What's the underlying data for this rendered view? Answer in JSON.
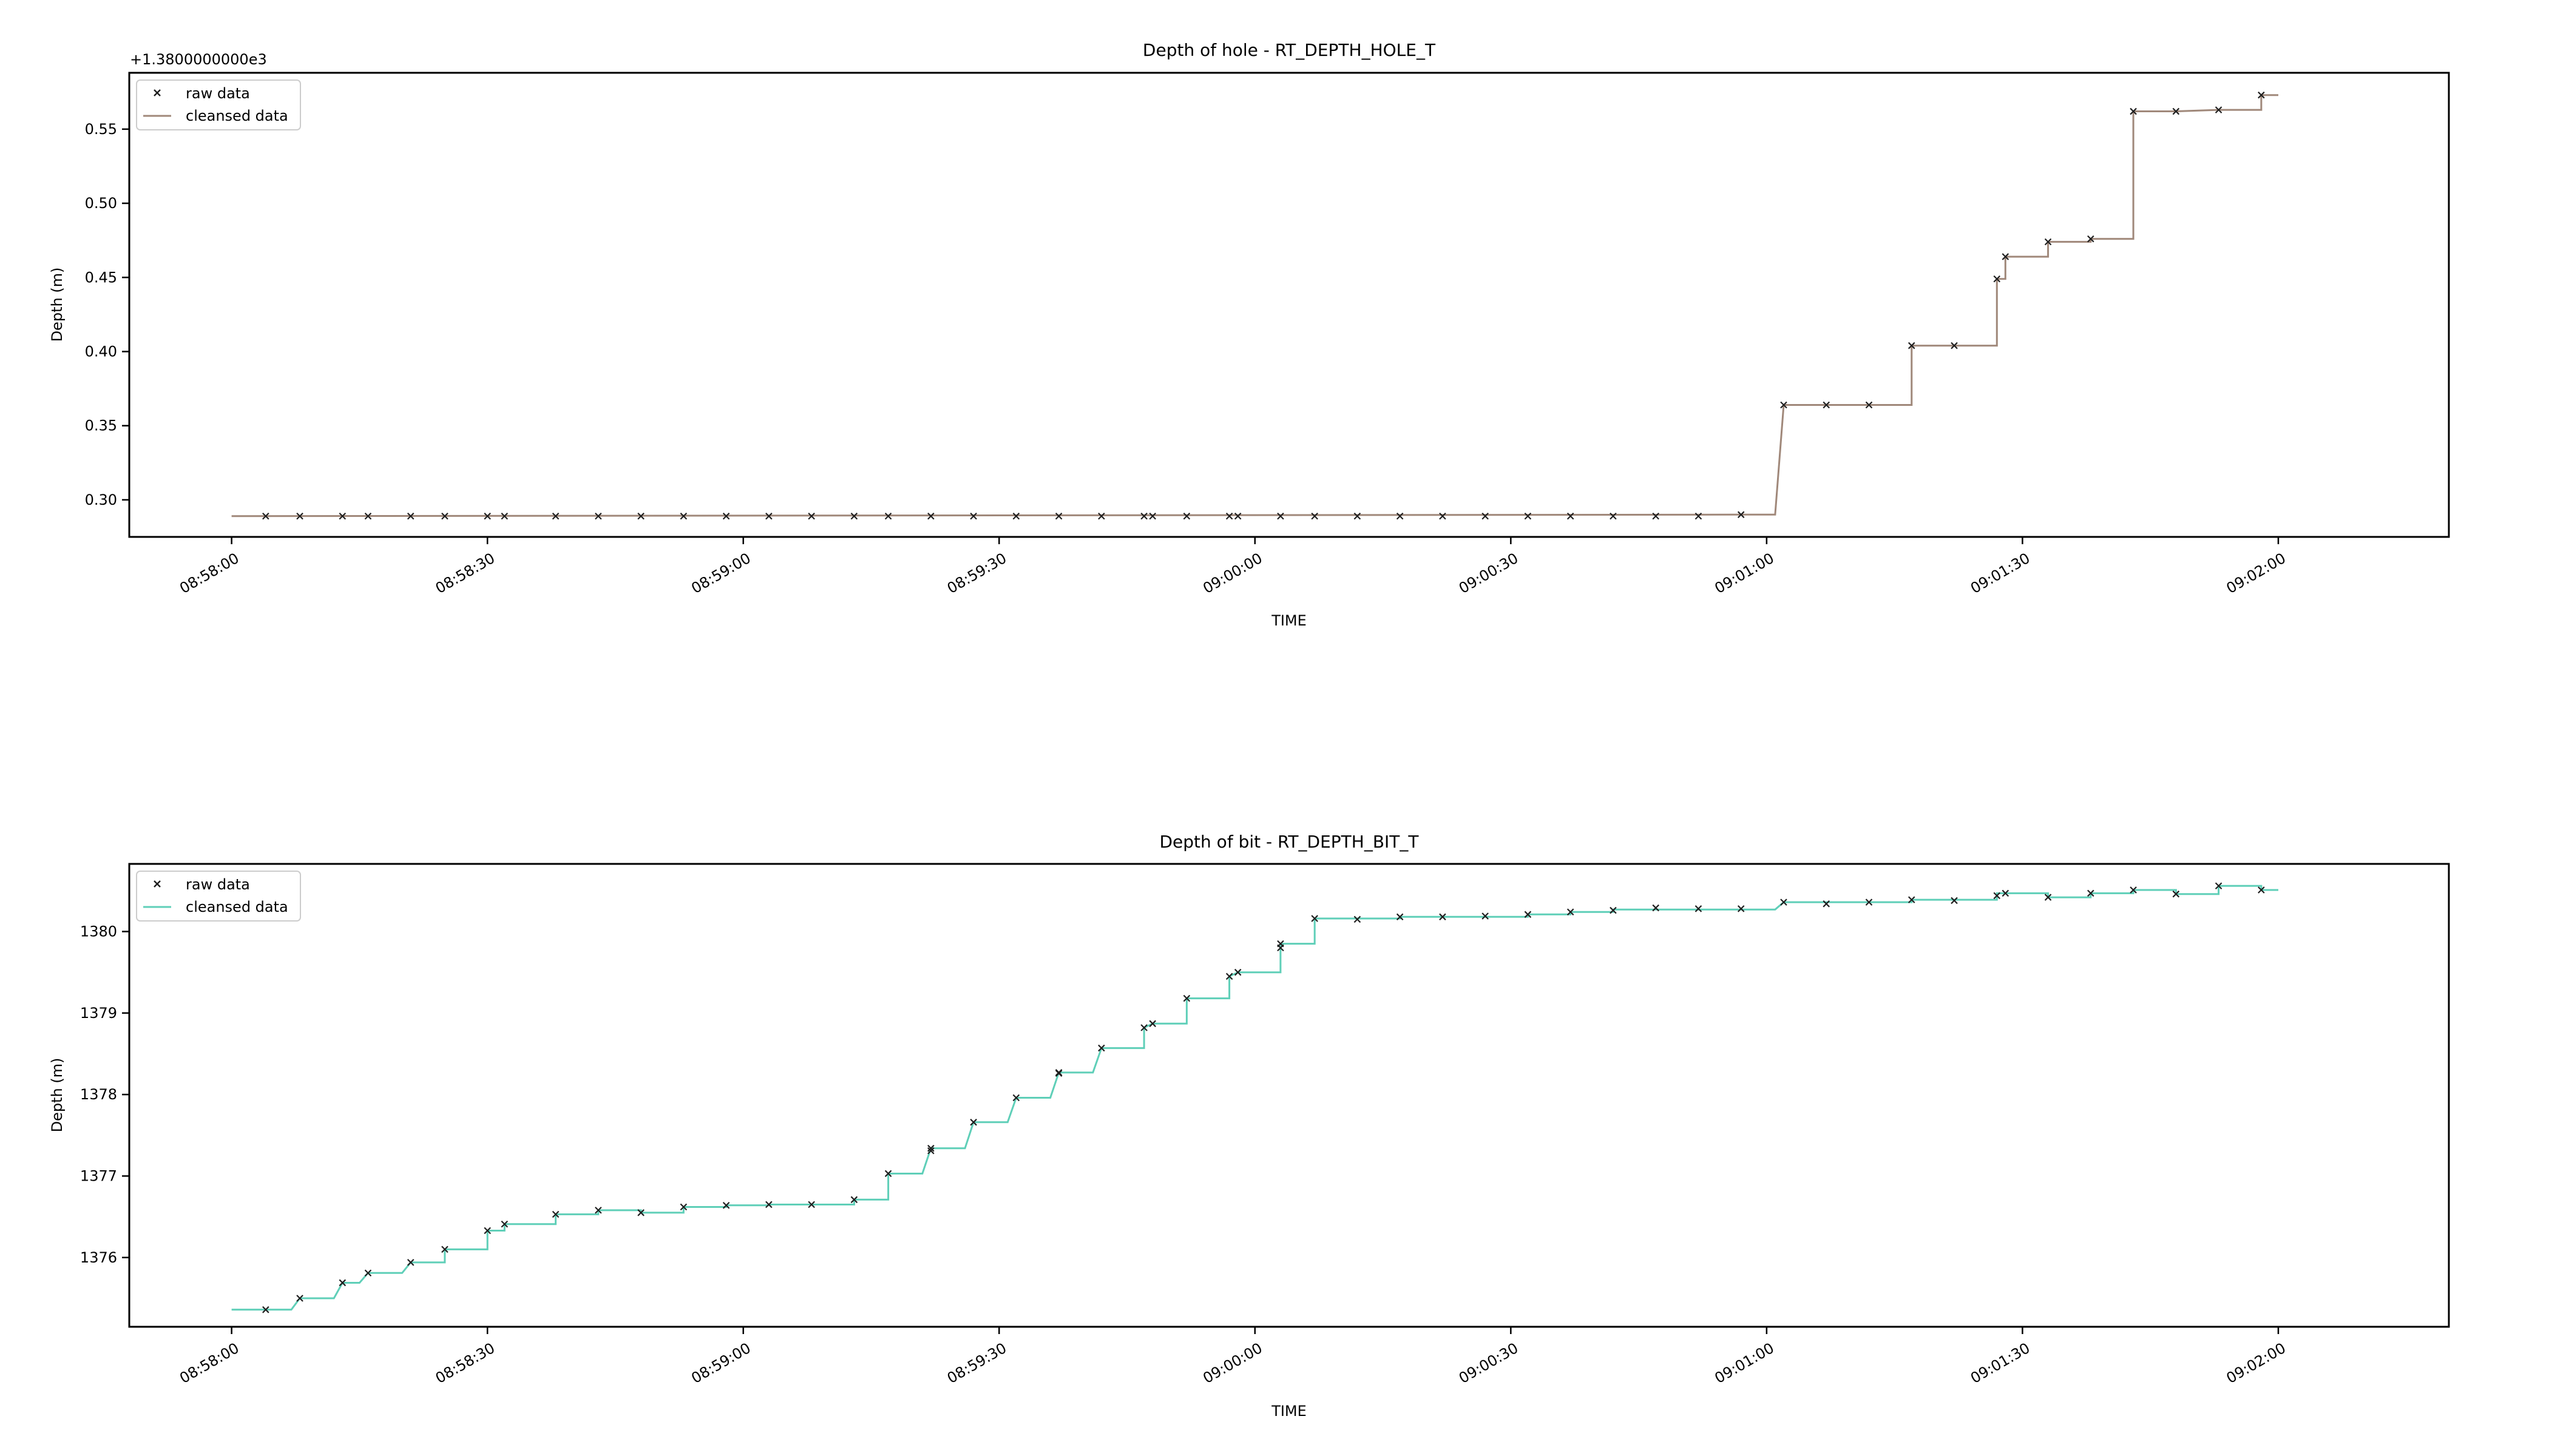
{
  "chart_data": [
    {
      "type": "line",
      "title": "Depth of hole - RT_DEPTH_HOLE_T",
      "xlabel": "TIME",
      "ylabel": "Depth (m)",
      "offset_text": "+1.3800000000e3",
      "xlim": [
        "08:57:48",
        "09:02:20"
      ],
      "ylim": [
        0.275,
        0.588
      ],
      "x_ticks": [
        "08:58:00",
        "08:58:30",
        "08:59:00",
        "08:59:30",
        "09:00:00",
        "09:00:30",
        "09:01:00",
        "09:01:30",
        "09:02:00"
      ],
      "y_ticks": [
        0.3,
        0.35,
        0.4,
        0.45,
        0.5,
        0.55
      ],
      "y_tick_labels": [
        "0.30",
        "0.35",
        "0.40",
        "0.45",
        "0.50",
        "0.55"
      ],
      "grid": false,
      "legend": "upper-left",
      "series": [
        {
          "name": "raw data",
          "style": "markers-x",
          "color": "#1f1f1f",
          "points": [
            [
              "08:58:04",
              0.289
            ],
            [
              "08:58:08",
              0.289
            ],
            [
              "08:58:13",
              0.289
            ],
            [
              "08:58:16",
              0.289
            ],
            [
              "08:58:21",
              0.289
            ],
            [
              "08:58:25",
              0.289
            ],
            [
              "08:58:30",
              0.289
            ],
            [
              "08:58:32",
              0.289
            ],
            [
              "08:58:38",
              0.289
            ],
            [
              "08:58:43",
              0.289
            ],
            [
              "08:58:48",
              0.289
            ],
            [
              "08:58:53",
              0.289
            ],
            [
              "08:58:58",
              0.289
            ],
            [
              "08:59:03",
              0.289
            ],
            [
              "08:59:08",
              0.289
            ],
            [
              "08:59:13",
              0.289
            ],
            [
              "08:59:17",
              0.289
            ],
            [
              "08:59:22",
              0.289
            ],
            [
              "08:59:27",
              0.289
            ],
            [
              "08:59:32",
              0.289
            ],
            [
              "08:59:37",
              0.289
            ],
            [
              "08:59:42",
              0.289
            ],
            [
              "08:59:47",
              0.289
            ],
            [
              "08:59:48",
              0.289
            ],
            [
              "08:59:52",
              0.289
            ],
            [
              "08:59:57",
              0.289
            ],
            [
              "08:59:58",
              0.289
            ],
            [
              "09:00:03",
              0.289
            ],
            [
              "09:00:07",
              0.289
            ],
            [
              "09:00:12",
              0.289
            ],
            [
              "09:00:17",
              0.289
            ],
            [
              "09:00:22",
              0.289
            ],
            [
              "09:00:27",
              0.289
            ],
            [
              "09:00:32",
              0.289
            ],
            [
              "09:00:37",
              0.289
            ],
            [
              "09:00:42",
              0.289
            ],
            [
              "09:00:47",
              0.289
            ],
            [
              "09:00:52",
              0.289
            ],
            [
              "09:00:57",
              0.29
            ],
            [
              "09:01:02",
              0.364
            ],
            [
              "09:01:07",
              0.364
            ],
            [
              "09:01:12",
              0.364
            ],
            [
              "09:01:17",
              0.404
            ],
            [
              "09:01:22",
              0.404
            ],
            [
              "09:01:27",
              0.449
            ],
            [
              "09:01:28",
              0.464
            ],
            [
              "09:01:33",
              0.474
            ],
            [
              "09:01:38",
              0.476
            ],
            [
              "09:01:43",
              0.562
            ],
            [
              "09:01:48",
              0.562
            ],
            [
              "09:01:53",
              0.563
            ],
            [
              "09:01:58",
              0.573
            ]
          ]
        },
        {
          "name": "cleansed data",
          "style": "line",
          "color": "#a0887a",
          "points": [
            [
              "08:58:00",
              0.289
            ],
            [
              "09:00:56",
              0.29
            ],
            [
              "09:01:01",
              0.29
            ],
            [
              "09:01:02",
              0.364
            ],
            [
              "09:01:17",
              0.364
            ],
            [
              "09:01:17",
              0.404
            ],
            [
              "09:01:27",
              0.404
            ],
            [
              "09:01:27",
              0.449
            ],
            [
              "09:01:28",
              0.449
            ],
            [
              "09:01:28",
              0.464
            ],
            [
              "09:01:33",
              0.464
            ],
            [
              "09:01:33",
              0.474
            ],
            [
              "09:01:38",
              0.474
            ],
            [
              "09:01:38",
              0.476
            ],
            [
              "09:01:43",
              0.476
            ],
            [
              "09:01:43",
              0.562
            ],
            [
              "09:01:48",
              0.562
            ],
            [
              "09:01:53",
              0.563
            ],
            [
              "09:01:58",
              0.563
            ],
            [
              "09:01:58",
              0.573
            ],
            [
              "09:02:00",
              0.573
            ]
          ]
        }
      ]
    },
    {
      "type": "line",
      "title": "Depth of bit - RT_DEPTH_BIT_T",
      "xlabel": "TIME",
      "ylabel": "Depth (m)",
      "xlim": [
        "08:57:48",
        "09:02:20"
      ],
      "ylim": [
        1375.15,
        1380.83
      ],
      "x_ticks": [
        "08:58:00",
        "08:58:30",
        "08:59:00",
        "08:59:30",
        "09:00:00",
        "09:00:30",
        "09:01:00",
        "09:01:30",
        "09:02:00"
      ],
      "y_ticks": [
        1376,
        1377,
        1378,
        1379,
        1380
      ],
      "y_tick_labels": [
        "1376",
        "1377",
        "1378",
        "1379",
        "1380"
      ],
      "grid": false,
      "legend": "upper-left",
      "series": [
        {
          "name": "raw data",
          "style": "markers-x",
          "color": "#1f1f1f",
          "points": [
            [
              "08:58:04",
              1375.36
            ],
            [
              "08:58:08",
              1375.5
            ],
            [
              "08:58:13",
              1375.69
            ],
            [
              "08:58:16",
              1375.81
            ],
            [
              "08:58:21",
              1375.94
            ],
            [
              "08:58:25",
              1376.1
            ],
            [
              "08:58:30",
              1376.33
            ],
            [
              "08:58:32",
              1376.41
            ],
            [
              "08:58:38",
              1376.53
            ],
            [
              "08:58:43",
              1376.58
            ],
            [
              "08:58:48",
              1376.55
            ],
            [
              "08:58:53",
              1376.62
            ],
            [
              "08:58:58",
              1376.64
            ],
            [
              "08:59:03",
              1376.65
            ],
            [
              "08:59:08",
              1376.65
            ],
            [
              "08:59:13",
              1376.71
            ],
            [
              "08:59:17",
              1377.03
            ],
            [
              "08:59:22",
              1377.31
            ],
            [
              "08:59:22",
              1377.34
            ],
            [
              "08:59:27",
              1377.66
            ],
            [
              "08:59:32",
              1377.96
            ],
            [
              "08:59:37",
              1378.26
            ],
            [
              "08:59:37",
              1378.27
            ],
            [
              "08:59:42",
              1378.57
            ],
            [
              "08:59:47",
              1378.82
            ],
            [
              "08:59:48",
              1378.87
            ],
            [
              "08:59:52",
              1379.18
            ],
            [
              "08:59:57",
              1379.45
            ],
            [
              "08:59:58",
              1379.5
            ],
            [
              "09:00:03",
              1379.8
            ],
            [
              "09:00:03",
              1379.85
            ],
            [
              "09:00:07",
              1380.16
            ],
            [
              "09:00:12",
              1380.15
            ],
            [
              "09:00:17",
              1380.18
            ],
            [
              "09:00:22",
              1380.18
            ],
            [
              "09:00:27",
              1380.19
            ],
            [
              "09:00:32",
              1380.21
            ],
            [
              "09:00:37",
              1380.24
            ],
            [
              "09:00:42",
              1380.26
            ],
            [
              "09:00:47",
              1380.29
            ],
            [
              "09:00:52",
              1380.28
            ],
            [
              "09:00:57",
              1380.28
            ],
            [
              "09:01:02",
              1380.36
            ],
            [
              "09:01:07",
              1380.34
            ],
            [
              "09:01:12",
              1380.36
            ],
            [
              "09:01:17",
              1380.39
            ],
            [
              "09:01:22",
              1380.38
            ],
            [
              "09:01:27",
              1380.44
            ],
            [
              "09:01:28",
              1380.47
            ],
            [
              "09:01:33",
              1380.42
            ],
            [
              "09:01:38",
              1380.47
            ],
            [
              "09:01:43",
              1380.51
            ],
            [
              "09:01:48",
              1380.46
            ],
            [
              "09:01:53",
              1380.56
            ],
            [
              "09:01:58",
              1380.51
            ]
          ]
        },
        {
          "name": "cleansed data",
          "style": "line",
          "color": "#5fcfb8",
          "points": [
            [
              "08:58:00",
              1375.36
            ],
            [
              "08:58:07",
              1375.36
            ],
            [
              "08:58:08",
              1375.5
            ],
            [
              "08:58:12",
              1375.5
            ],
            [
              "08:58:13",
              1375.69
            ],
            [
              "08:58:15",
              1375.69
            ],
            [
              "08:58:16",
              1375.81
            ],
            [
              "08:58:20",
              1375.81
            ],
            [
              "08:58:21",
              1375.94
            ],
            [
              "08:58:25",
              1375.94
            ],
            [
              "08:58:25",
              1376.1
            ],
            [
              "08:58:30",
              1376.1
            ],
            [
              "08:58:30",
              1376.33
            ],
            [
              "08:58:32",
              1376.33
            ],
            [
              "08:58:32",
              1376.41
            ],
            [
              "08:58:38",
              1376.41
            ],
            [
              "08:58:38",
              1376.53
            ],
            [
              "08:58:43",
              1376.53
            ],
            [
              "08:58:43",
              1376.58
            ],
            [
              "08:58:48",
              1376.58
            ],
            [
              "08:58:48",
              1376.55
            ],
            [
              "08:58:53",
              1376.55
            ],
            [
              "08:58:53",
              1376.62
            ],
            [
              "08:58:58",
              1376.62
            ],
            [
              "08:58:58",
              1376.64
            ],
            [
              "08:59:03",
              1376.64
            ],
            [
              "08:59:03",
              1376.65
            ],
            [
              "08:59:13",
              1376.65
            ],
            [
              "08:59:13",
              1376.71
            ],
            [
              "08:59:17",
              1376.71
            ],
            [
              "08:59:17",
              1377.03
            ],
            [
              "08:59:21",
              1377.03
            ],
            [
              "08:59:22",
              1377.34
            ],
            [
              "08:59:26",
              1377.34
            ],
            [
              "08:59:27",
              1377.66
            ],
            [
              "08:59:31",
              1377.66
            ],
            [
              "08:59:32",
              1377.96
            ],
            [
              "08:59:36",
              1377.96
            ],
            [
              "08:59:37",
              1378.27
            ],
            [
              "08:59:41",
              1378.27
            ],
            [
              "08:59:42",
              1378.57
            ],
            [
              "08:59:47",
              1378.57
            ],
            [
              "08:59:47",
              1378.82
            ],
            [
              "08:59:48",
              1378.87
            ],
            [
              "08:59:52",
              1378.87
            ],
            [
              "08:59:52",
              1379.18
            ],
            [
              "08:59:57",
              1379.18
            ],
            [
              "08:59:57",
              1379.45
            ],
            [
              "08:59:58",
              1379.5
            ],
            [
              "09:00:03",
              1379.5
            ],
            [
              "09:00:03",
              1379.85
            ],
            [
              "09:00:07",
              1379.85
            ],
            [
              "09:00:07",
              1380.16
            ],
            [
              "09:00:17",
              1380.16
            ],
            [
              "09:00:17",
              1380.18
            ],
            [
              "09:00:32",
              1380.18
            ],
            [
              "09:00:32",
              1380.21
            ],
            [
              "09:00:37",
              1380.21
            ],
            [
              "09:00:37",
              1380.24
            ],
            [
              "09:00:42",
              1380.24
            ],
            [
              "09:00:42",
              1380.27
            ],
            [
              "09:01:01",
              1380.27
            ],
            [
              "09:01:02",
              1380.36
            ],
            [
              "09:01:17",
              1380.36
            ],
            [
              "09:01:17",
              1380.39
            ],
            [
              "09:01:27",
              1380.39
            ],
            [
              "09:01:27",
              1380.47
            ],
            [
              "09:01:33",
              1380.47
            ],
            [
              "09:01:33",
              1380.42
            ],
            [
              "09:01:38",
              1380.42
            ],
            [
              "09:01:38",
              1380.47
            ],
            [
              "09:01:43",
              1380.47
            ],
            [
              "09:01:43",
              1380.51
            ],
            [
              "09:01:48",
              1380.51
            ],
            [
              "09:01:48",
              1380.46
            ],
            [
              "09:01:53",
              1380.46
            ],
            [
              "09:01:53",
              1380.56
            ],
            [
              "09:01:58",
              1380.56
            ],
            [
              "09:01:58",
              1380.51
            ],
            [
              "09:02:00",
              1380.51
            ]
          ]
        }
      ]
    }
  ]
}
